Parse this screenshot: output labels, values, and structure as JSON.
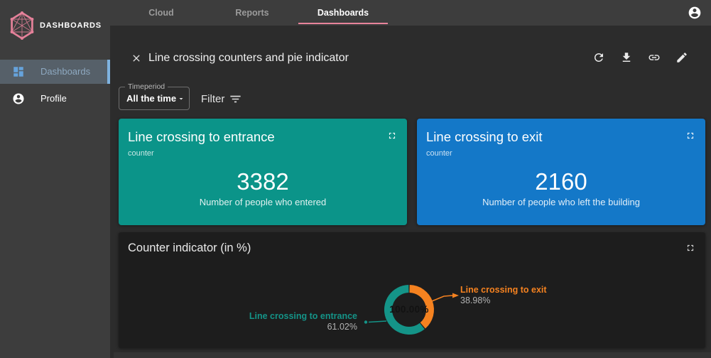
{
  "colors": {
    "sidebar_bg": "#3d3d3d",
    "main_bg": "#2c2c2c",
    "pie_card_bg": "#1d1d1d",
    "accent_pink": "#e8839b",
    "selected_nav_border": "#7fb3e0",
    "nav_icon_blue": "#66a3dc"
  },
  "sidebar": {
    "logo_text": "DASHBOARDS",
    "items": [
      {
        "label": "Dashboards",
        "active": true
      },
      {
        "label": "Profile",
        "active": false
      }
    ]
  },
  "topnav": {
    "tabs": [
      {
        "label": "Cloud",
        "active": false
      },
      {
        "label": "Reports",
        "active": false
      },
      {
        "label": "Dashboards",
        "active": true
      }
    ]
  },
  "view_header": {
    "title": "Line crossing counters and pie indicator",
    "actions": [
      "refresh",
      "download",
      "copy-link",
      "edit"
    ]
  },
  "filter_bar": {
    "timeperiod_label": "Timeperiod",
    "timeperiod_value": "All the time",
    "filter_label": "Filter"
  },
  "counter_cards": [
    {
      "title": "Line crossing to entrance",
      "type_label": "counter",
      "value": "3382",
      "description": "Number of people who entered",
      "color": "#0b9489"
    },
    {
      "title": "Line crossing to exit",
      "type_label": "counter",
      "value": "2160",
      "description": "Number of people who left the building",
      "color": "#1478c8"
    }
  ],
  "chart_data": {
    "type": "pie",
    "donut": true,
    "title": "Counter indicator (in %)",
    "center_label": "100.00%",
    "start_angle_deg": 0,
    "direction": "clockwise",
    "legend_position": "callout-labels",
    "series": [
      {
        "name": "Line crossing to exit",
        "value": 38.98,
        "label": "38.98%",
        "color": "#f58220"
      },
      {
        "name": "Line crossing to entrance",
        "value": 61.02,
        "label": "61.02%",
        "color": "#149488"
      }
    ]
  }
}
